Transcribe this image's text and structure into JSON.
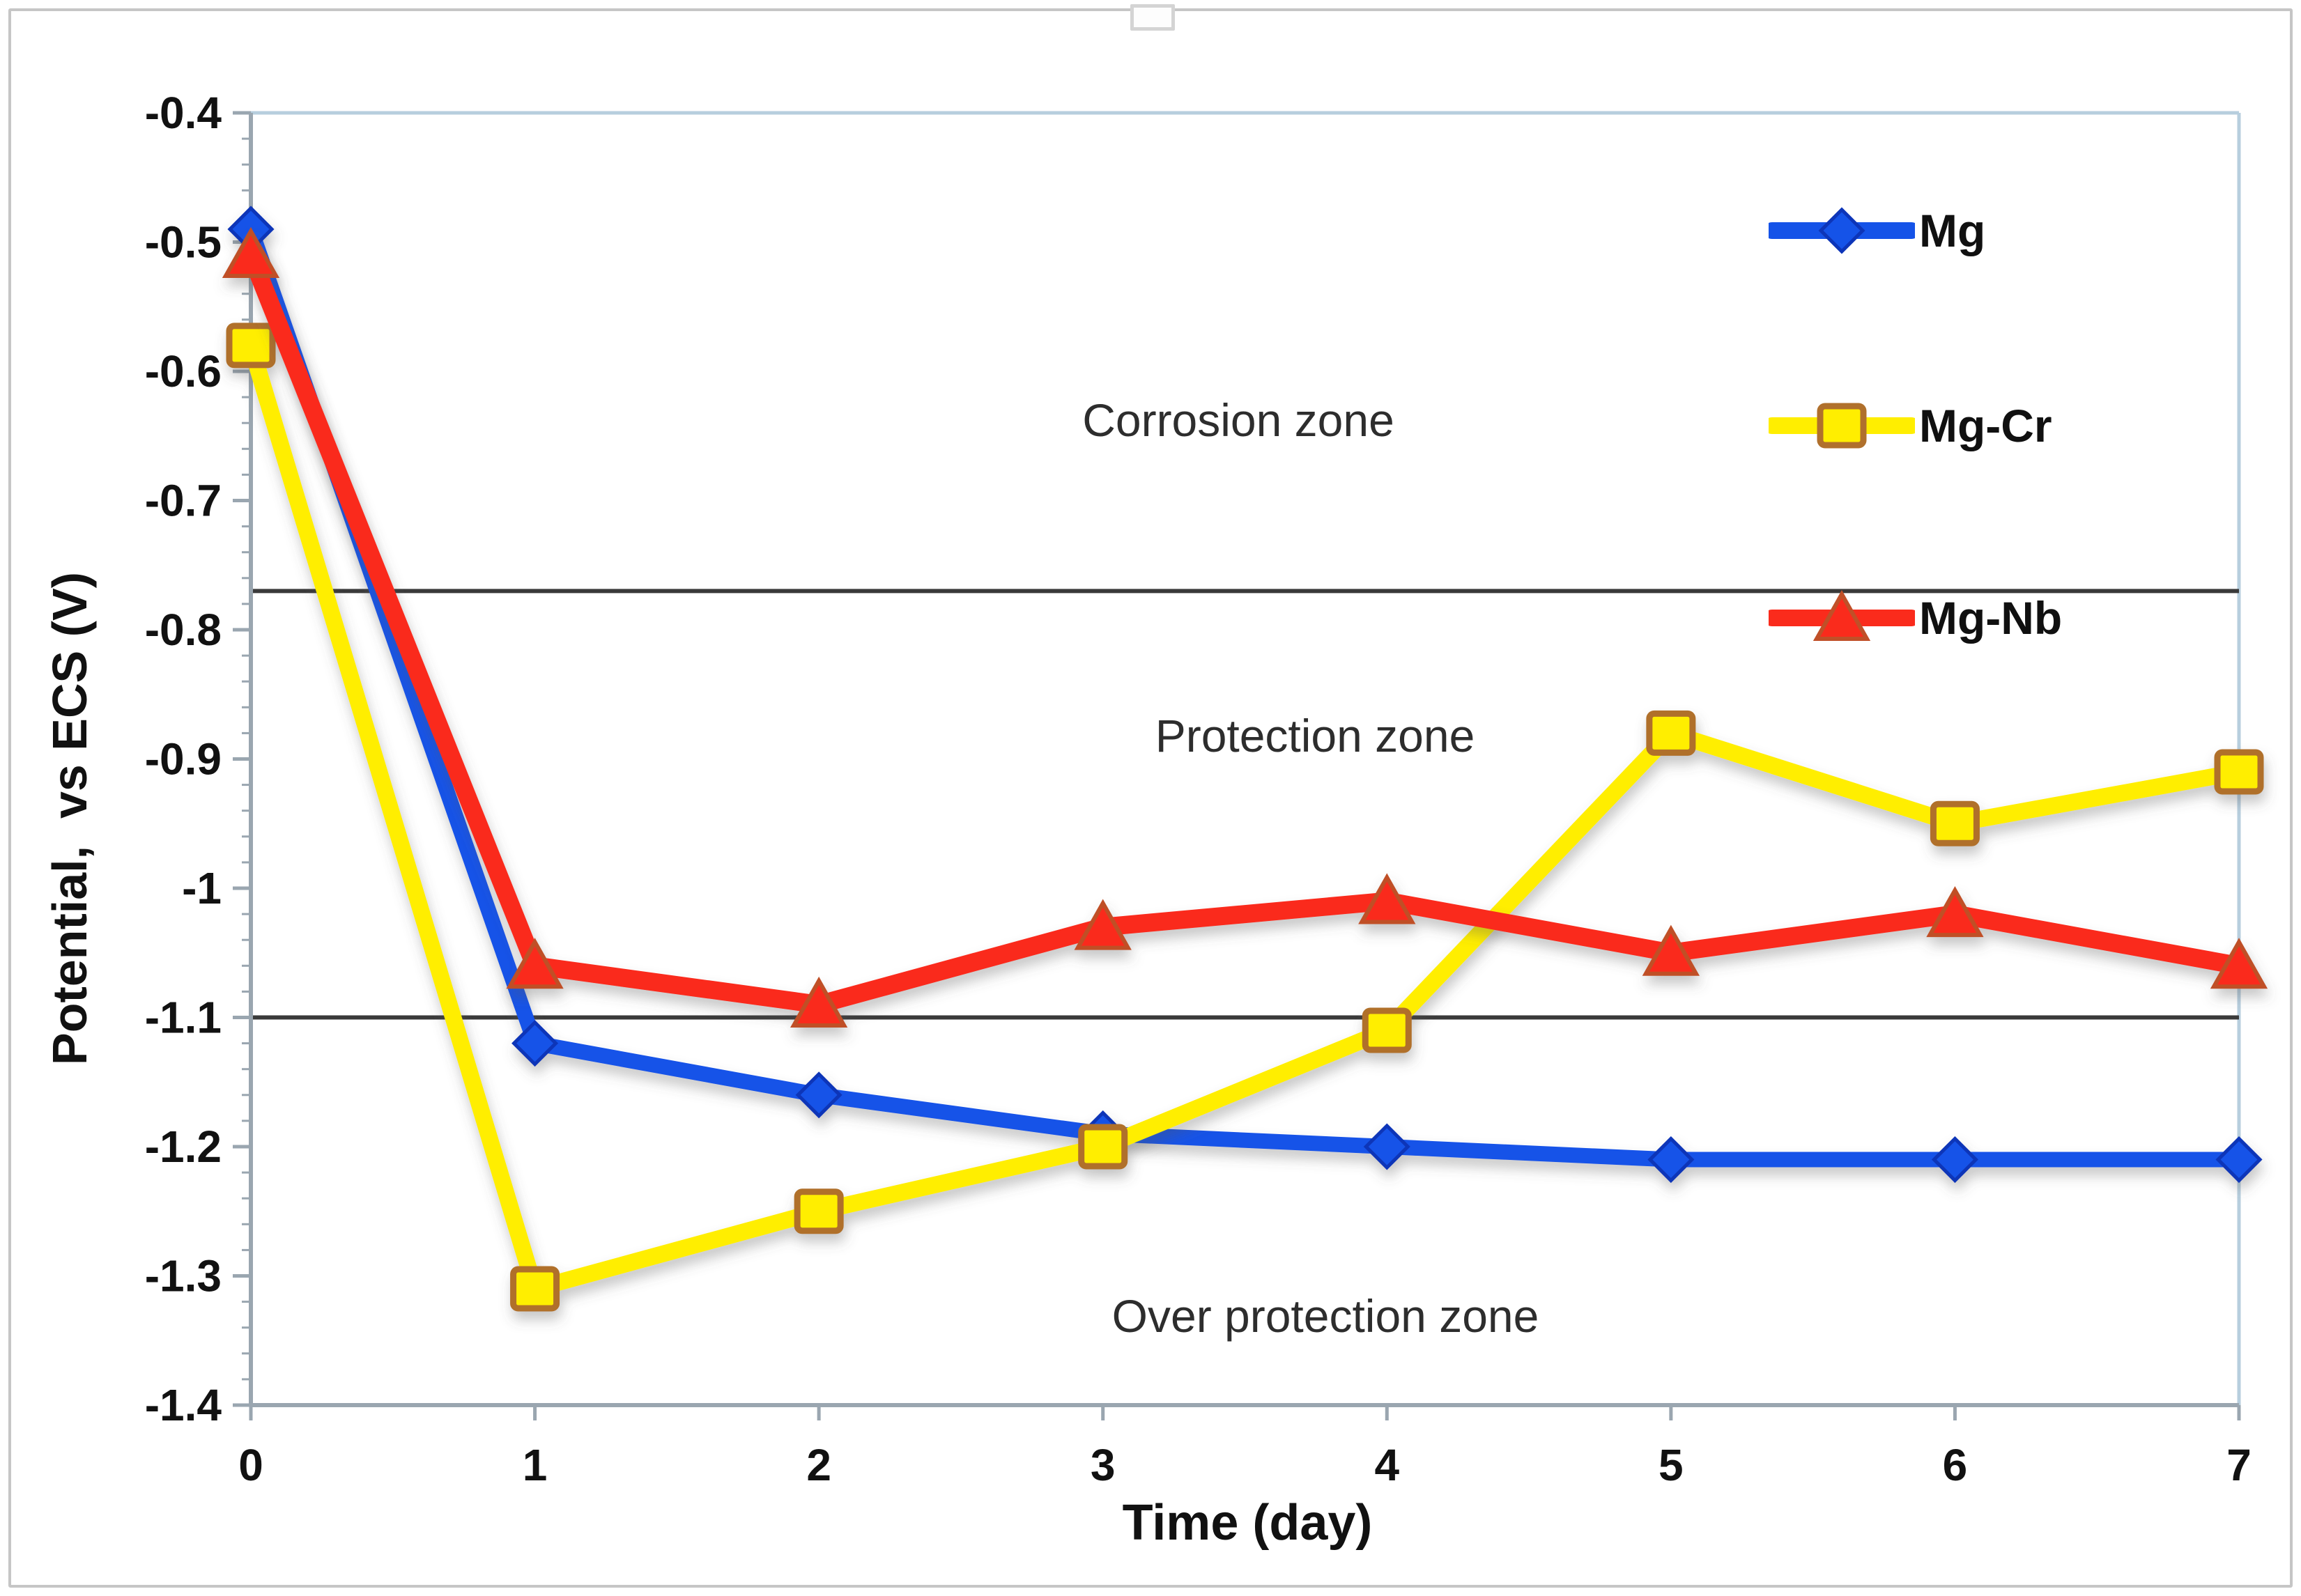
{
  "chart_data": {
    "type": "line",
    "title": "",
    "xlabel": "Time (day)",
    "ylabel": "Potential,  vs ECS (V)",
    "x": [
      0,
      1,
      2,
      3,
      4,
      5,
      6,
      7
    ],
    "xlim": [
      0,
      7
    ],
    "ylim": [
      -1.4,
      -0.4
    ],
    "y_ticks": [
      "-0.4",
      "-0.5",
      "-0.6",
      "-0.7",
      "-0.8",
      "-0.9",
      "-1",
      "-1.1",
      "-1.2",
      "-1.3",
      "-1.4"
    ],
    "y_minor_tick_step": 0.02,
    "grid": false,
    "legend_position": "upper-right-inside",
    "series": [
      {
        "name": "Mg",
        "marker": "diamond",
        "color": "#1553e8",
        "marker_edge": "#0d35b8",
        "values": [
          -0.49,
          -1.12,
          -1.16,
          -1.19,
          -1.2,
          -1.21,
          -1.21,
          -1.21
        ]
      },
      {
        "name": "Mg-Cr",
        "marker": "square",
        "color": "#ffee00",
        "marker_edge": "#b0702c",
        "values": [
          -0.58,
          -1.31,
          -1.25,
          -1.2,
          -1.11,
          -0.88,
          -0.95,
          -0.91
        ]
      },
      {
        "name": "Mg-Nb",
        "marker": "triangle",
        "color": "#fa2b1c",
        "marker_edge": "#c05028",
        "values": [
          -0.51,
          -1.06,
          -1.09,
          -1.03,
          -1.01,
          -1.05,
          -1.02,
          -1.06
        ]
      }
    ],
    "reference_lines": [
      {
        "value": -0.77,
        "color": "#3a3a3a"
      },
      {
        "value": -1.1,
        "color": "#3a3a3a"
      }
    ],
    "annotations": [
      {
        "text": "Corrosion zone",
        "x": 3.48,
        "y": -0.638
      },
      {
        "text": "Protection zone",
        "x": 3.75,
        "y": -0.882
      },
      {
        "text": "Over protection zone",
        "x": 3.78,
        "y": -1.331
      }
    ],
    "axis_color": "#9aa6b0",
    "plot_border_color": "#b7cede",
    "tick_label_color": "#111111"
  }
}
